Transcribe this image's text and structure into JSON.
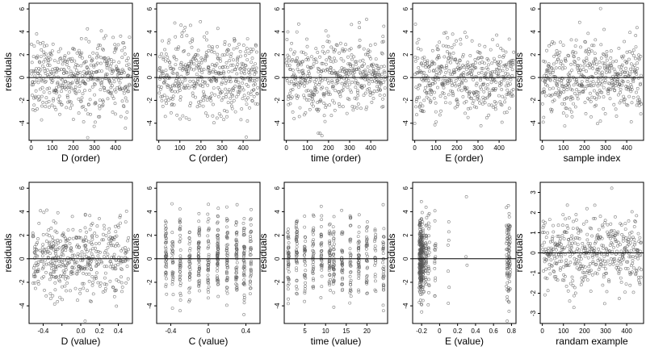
{
  "figure": {
    "type": "residual-diagnostics-grid",
    "rows": 2,
    "cols": 5
  },
  "style": {
    "point_color": "#555555",
    "axis_color": "#000000",
    "zero_line_color": "#000000",
    "background": "#ffffff"
  },
  "chart_data": [
    {
      "type": "scatter",
      "title": "",
      "xlabel": "D (order)",
      "ylabel": "residuals",
      "xlim": [
        -10,
        480
      ],
      "ylim": [
        -5.5,
        6.5
      ],
      "xticks": [
        0,
        100,
        200,
        300,
        400
      ],
      "yticks": [
        -4,
        -2,
        0,
        2,
        4,
        6
      ],
      "hline": 0,
      "x_kind": "index",
      "n_points": 460,
      "sd": 1.8,
      "pattern": "mixed"
    },
    {
      "type": "scatter",
      "title": "",
      "xlabel": "C (order)",
      "ylabel": "residuals",
      "xlim": [
        -10,
        480
      ],
      "ylim": [
        -5.5,
        6.5
      ],
      "xticks": [
        0,
        100,
        200,
        300,
        400
      ],
      "yticks": [
        -4,
        -2,
        0,
        2,
        4,
        6
      ],
      "hline": 0,
      "x_kind": "index",
      "n_points": 460,
      "sd": 1.8,
      "pattern": "mixed"
    },
    {
      "type": "scatter",
      "title": "",
      "xlabel": "time (order)",
      "ylabel": "residuals",
      "xlim": [
        -10,
        480
      ],
      "ylim": [
        -5.5,
        6.5
      ],
      "xticks": [
        0,
        100,
        200,
        300,
        400
      ],
      "yticks": [
        -4,
        -2,
        0,
        2,
        4,
        6
      ],
      "hline": 0,
      "x_kind": "index",
      "n_points": 460,
      "sd": 1.8,
      "pattern": "mixed"
    },
    {
      "type": "scatter",
      "title": "",
      "xlabel": "E (order)",
      "ylabel": "residuals",
      "xlim": [
        -10,
        480
      ],
      "ylim": [
        -5.5,
        6.5
      ],
      "xticks": [
        0,
        100,
        200,
        300,
        400
      ],
      "yticks": [
        -4,
        -2,
        0,
        2,
        4,
        6
      ],
      "hline": 0,
      "x_kind": "index",
      "n_points": 460,
      "sd": 1.8,
      "pattern": "mixed"
    },
    {
      "type": "scatter",
      "title": "",
      "xlabel": "sample index",
      "ylabel": "residuals",
      "xlim": [
        -10,
        480
      ],
      "ylim": [
        -5.5,
        6.5
      ],
      "xticks": [
        0,
        100,
        200,
        300,
        400
      ],
      "yticks": [
        -4,
        -2,
        0,
        2,
        4,
        6
      ],
      "hline": 0,
      "x_kind": "index",
      "n_points": 460,
      "sd": 1.8,
      "pattern": "mixed"
    },
    {
      "type": "scatter",
      "title": "",
      "xlabel": "D (value)",
      "ylabel": "residuals",
      "xlim": [
        -0.55,
        0.55
      ],
      "ylim": [
        -5.5,
        6.5
      ],
      "xticks": [
        -0.4,
        -0.2,
        0.0,
        0.2,
        0.4
      ],
      "xtick_labels": [
        "-0.4",
        "",
        "0.0",
        "0.2",
        "0.4"
      ],
      "yticks": [
        -4,
        -2,
        0,
        2,
        4,
        6
      ],
      "hline": 0,
      "x_kind": "continuous",
      "n_points": 460,
      "sd": 1.8,
      "pattern": "mixed"
    },
    {
      "type": "scatter",
      "title": "",
      "xlabel": "C (value)",
      "ylabel": "residuals",
      "xlim": [
        -0.55,
        0.55
      ],
      "ylim": [
        -5.5,
        6.5
      ],
      "xticks": [
        -0.4,
        0.0,
        0.4
      ],
      "yticks": [
        -4,
        -2,
        0,
        2,
        4,
        6
      ],
      "hline": 0,
      "x_kind": "clustered",
      "clusters": [
        -0.45,
        -0.38,
        -0.3,
        -0.2,
        -0.1,
        0.0,
        0.1,
        0.2,
        0.3,
        0.38,
        0.45
      ],
      "n_points": 460,
      "sd": 1.8,
      "pattern": "mixed"
    },
    {
      "type": "scatter",
      "title": "",
      "xlabel": "time (value)",
      "ylabel": "residuals",
      "xlim": [
        0,
        25
      ],
      "ylim": [
        -5.5,
        6.5
      ],
      "xticks": [
        5,
        10,
        15,
        20
      ],
      "yticks": [
        -4,
        -2,
        0,
        2,
        4,
        6
      ],
      "hline": 0,
      "x_kind": "clustered",
      "clusters": [
        1,
        3,
        5,
        7,
        9,
        11,
        12,
        14,
        16,
        18,
        20,
        22,
        24
      ],
      "n_points": 460,
      "sd": 1.8,
      "pattern": "mixed"
    },
    {
      "type": "scatter",
      "title": "",
      "xlabel": "E (value)",
      "ylabel": "residuals",
      "xlim": [
        -0.3,
        0.85
      ],
      "ylim": [
        -5.5,
        6.5
      ],
      "xticks": [
        -0.2,
        0.0,
        0.2,
        0.4,
        0.6,
        0.8
      ],
      "yticks": [
        -4,
        -2,
        0,
        2,
        4,
        6
      ],
      "hline": 0,
      "x_kind": "clustered",
      "clusters": [
        -0.22,
        -0.21,
        -0.2,
        -0.19,
        -0.18,
        -0.15,
        -0.12,
        -0.05,
        0.1,
        0.3,
        0.75,
        0.77,
        0.78
      ],
      "cluster_weights": [
        12,
        12,
        10,
        8,
        6,
        5,
        4,
        2,
        2,
        1,
        6,
        6,
        5
      ],
      "n_points": 460,
      "sd": 1.8,
      "pattern": "mixed"
    },
    {
      "type": "scatter",
      "title": "",
      "xlabel": "randam example",
      "ylabel": "residuals",
      "xlim": [
        -10,
        480
      ],
      "ylim": [
        -3.5,
        3.5
      ],
      "xticks": [
        0,
        100,
        200,
        300,
        400
      ],
      "yticks": [
        -3,
        -2,
        -1,
        0,
        1,
        2,
        3
      ],
      "hline": 0,
      "x_kind": "index",
      "n_points": 460,
      "sd": 1.0,
      "pattern": "gaussian"
    }
  ]
}
